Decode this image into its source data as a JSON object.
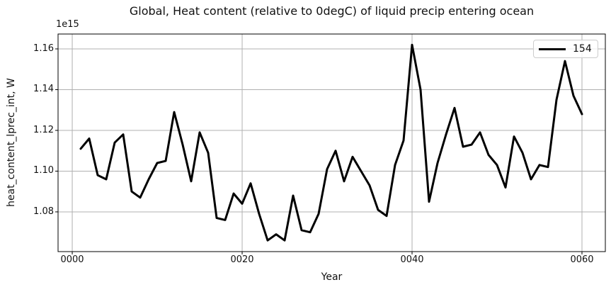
{
  "figure": {
    "background": "#ffffff"
  },
  "chart_data": {
    "type": "line",
    "title": "Global, Heat content (relative to 0degC) of liquid precip entering ocean",
    "xlabel": "Year",
    "ylabel": "heat_content_lprec_int, W",
    "y_offset_text": "1e15",
    "x_ticks": {
      "values": [
        0,
        20,
        40,
        60
      ],
      "labels": [
        "0000",
        "0020",
        "0040",
        "0060"
      ]
    },
    "y_ticks": {
      "values": [
        1.08,
        1.1,
        1.12,
        1.14,
        1.16
      ],
      "labels": [
        "1.08",
        "1.10",
        "1.12",
        "1.14",
        "1.16"
      ]
    },
    "xlim": [
      -1.67,
      62.75
    ],
    "ylim": [
      1.0605,
      1.1673
    ],
    "grid": true,
    "grid_color": "#b0b0b0",
    "spine_color": "#000000",
    "legend": {
      "position": "upper right",
      "border_color": "#cccccc"
    },
    "series": [
      {
        "name": "154",
        "color": "#000000",
        "linewidth": 3,
        "x": [
          1,
          2,
          3,
          4,
          5,
          6,
          7,
          8,
          9,
          10,
          11,
          12,
          13,
          14,
          15,
          16,
          17,
          18,
          19,
          20,
          21,
          22,
          23,
          24,
          25,
          26,
          27,
          28,
          29,
          30,
          31,
          32,
          33,
          34,
          35,
          36,
          37,
          38,
          39,
          40,
          41,
          42,
          43,
          44,
          45,
          46,
          47,
          48,
          49,
          50,
          51,
          52,
          53,
          54,
          55,
          56,
          57,
          58,
          59,
          60
        ],
        "y": [
          1.111,
          1.116,
          1.098,
          1.096,
          1.114,
          1.118,
          1.09,
          1.087,
          1.096,
          1.104,
          1.105,
          1.129,
          1.113,
          1.095,
          1.119,
          1.109,
          1.077,
          1.076,
          1.089,
          1.084,
          1.094,
          1.079,
          1.066,
          1.069,
          1.066,
          1.088,
          1.071,
          1.07,
          1.079,
          1.101,
          1.11,
          1.095,
          1.107,
          1.1,
          1.093,
          1.081,
          1.078,
          1.103,
          1.115,
          1.162,
          1.14,
          1.085,
          1.104,
          1.118,
          1.131,
          1.112,
          1.113,
          1.119,
          1.108,
          1.103,
          1.092,
          1.117,
          1.109,
          1.096,
          1.103,
          1.102,
          1.135,
          1.154,
          1.137,
          1.128
        ]
      }
    ]
  }
}
